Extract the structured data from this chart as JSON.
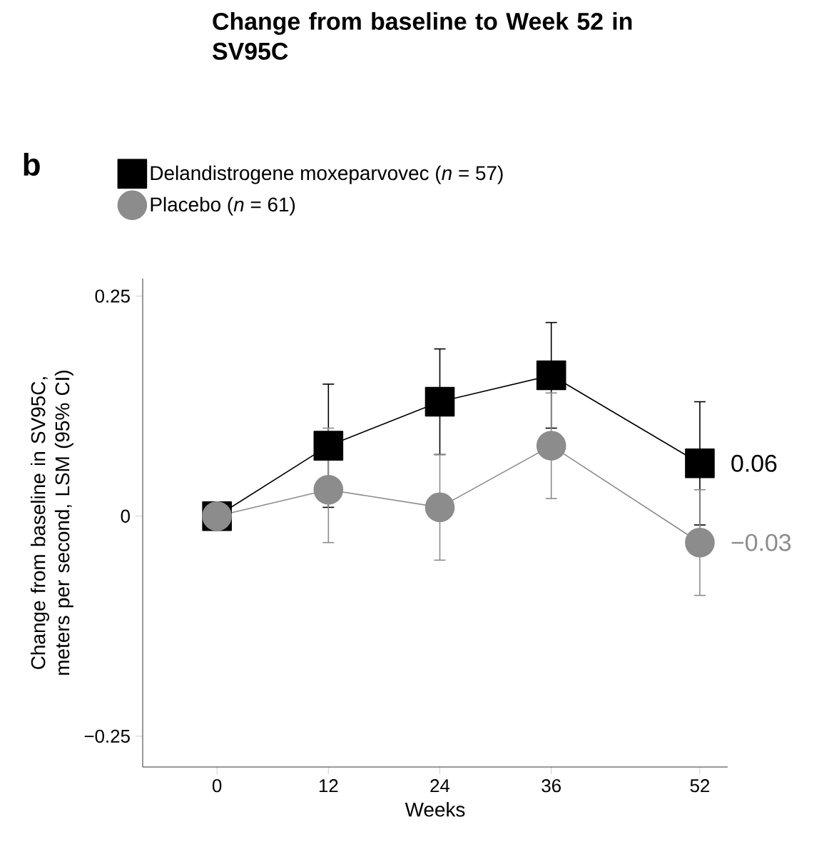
{
  "chart_data": {
    "type": "line",
    "title": "Change from baseline to Week 52 in SV95C",
    "xlabel": "Weeks",
    "ylabel": "Change from baseline in SV95C, meters per second, LSM (95% CI)",
    "x": [
      0,
      12,
      24,
      36,
      52
    ],
    "series": [
      {
        "name": "Delandistrogene moxeparvovec (*n* = 57)",
        "color": "#000000",
        "marker": "square",
        "values": [
          0,
          0.08,
          0.13,
          0.16,
          0.06
        ],
        "errors": [
          null,
          [
            0.01,
            0.15
          ],
          [
            0.07,
            0.19
          ],
          [
            0.1,
            0.22
          ],
          [
            -0.01,
            0.13
          ]
        ]
      },
      {
        "name": "Placebo (*n* = 61)",
        "color": "#8c8c8c",
        "marker": "circle",
        "values": [
          0,
          0.03,
          0.01,
          0.08,
          -0.03
        ],
        "errors": [
          null,
          [
            -0.03,
            0.1
          ],
          [
            -0.05,
            0.07
          ],
          [
            0.02,
            0.14
          ],
          [
            -0.09,
            0.03
          ]
        ]
      }
    ],
    "xlim": [
      -8,
      55
    ],
    "ylim": [
      -0.285,
      0.27
    ],
    "xticks": [
      0,
      12,
      24,
      36,
      52
    ],
    "yticks": [
      {
        "value": -0.25,
        "label": "−0.25"
      },
      0,
      0.25
    ],
    "grid": false,
    "legend": "top left",
    "annotations": [
      "b",
      {
        "text": "0.06",
        "x": 52,
        "y": 0.06
      },
      {
        "text": "−0.03",
        "x": 52,
        "y": -0.03
      }
    ]
  }
}
